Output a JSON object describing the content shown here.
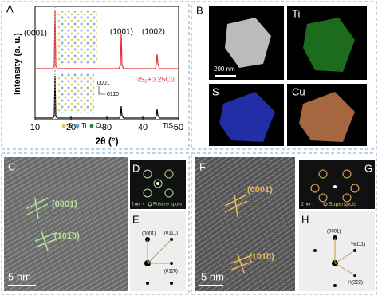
{
  "panels": {
    "a": {
      "label": "A",
      "y_label": "Intensity (a. u.)",
      "x_label": "2θ (°)",
      "xlim": [
        10,
        50
      ],
      "xticks": [
        10,
        20,
        30,
        40,
        50
      ],
      "peaks": [
        "(0001)",
        "(1001)",
        "(1002)"
      ],
      "samples": [
        "TiS₂+0.25Cu",
        "TiS₂"
      ],
      "legend": [
        "S",
        "Ti",
        "Cu"
      ],
      "inset_axes": [
        "0001",
        "011̄0"
      ]
    },
    "b": {
      "label": "B",
      "scale_bar": "200 nm",
      "maps": [
        "Ti",
        "S",
        "Cu"
      ]
    },
    "c": {
      "label": "C",
      "planes": [
        "(0001)",
        "(101̄0)"
      ],
      "scale_bar": "5 nm"
    },
    "d": {
      "label": "D",
      "scale_bar": "2 nm⁻¹",
      "caption": "Pristine spots"
    },
    "e": {
      "label": "E",
      "spots": [
        "(0001)",
        "(011̄1)",
        "(011̄0)"
      ]
    },
    "f": {
      "label": "F",
      "planes": [
        "(0001)",
        "(101̄0)"
      ],
      "scale_bar": "5 nm"
    },
    "g": {
      "label": "G",
      "scale_bar": "2 nm⁻¹",
      "caption": "Superspots"
    },
    "h": {
      "label": "H",
      "spots": [
        "(0001)",
        "⅓(111)",
        "⅓(222)"
      ]
    }
  }
}
